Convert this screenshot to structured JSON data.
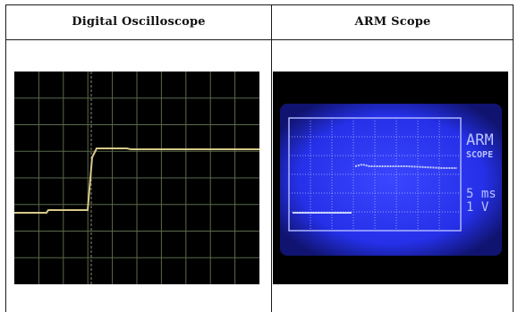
{
  "table": {
    "columns": [
      {
        "header": "Digital Oscilloscope"
      },
      {
        "header": "ARM Scope"
      }
    ]
  },
  "arm_display": {
    "title_line1": "ARM",
    "title_line2": "SCOPE",
    "timebase": "5 ms",
    "volts": "1 V"
  },
  "colors": {
    "dso_grid": "#5a6a4a",
    "dso_trace": "#d8c98a",
    "arm_backlight": "#2b34ff",
    "arm_screen": "#2a36f0",
    "arm_pixel": "#b9c2ff"
  }
}
